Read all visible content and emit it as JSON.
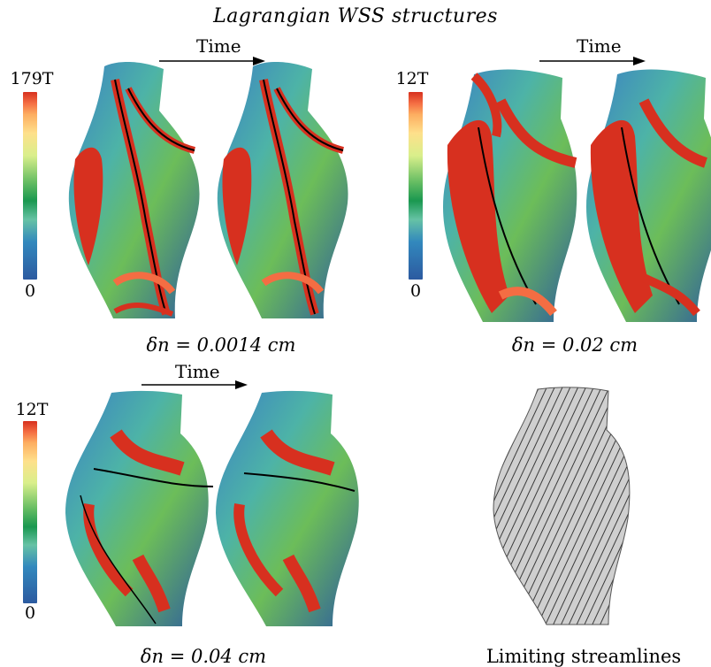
{
  "figure": {
    "title": "Lagrangian WSS structures",
    "arrow_label": "Time",
    "panels": [
      {
        "caption_math": "δn = 0.0014 cm",
        "colorbar_max": "179T",
        "colorbar_min": "0"
      },
      {
        "caption_math": "δn = 0.02 cm",
        "colorbar_max": "12T",
        "colorbar_min": "0"
      },
      {
        "caption_math": "δn = 0.04 cm",
        "colorbar_max": "12T",
        "colorbar_min": "0"
      },
      {
        "caption": "Limiting streamlines"
      }
    ],
    "colors": {
      "high": "#d7301f",
      "mid": "#1a9850",
      "low": "#2c5aa0",
      "streamline": "#3a3a3a"
    }
  }
}
